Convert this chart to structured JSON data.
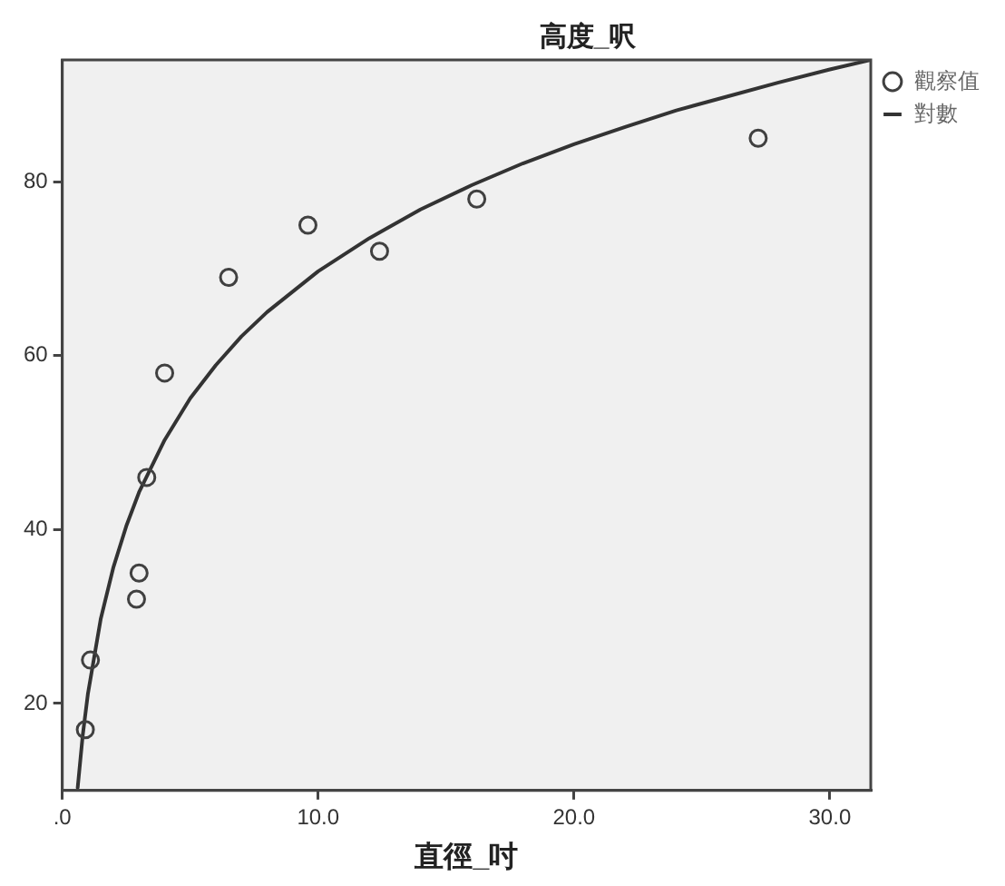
{
  "chart_data": {
    "type": "scatter",
    "title": "高度_呎",
    "xlabel": "直徑_吋",
    "series": [
      {
        "name": "觀察值",
        "color": "#404040",
        "marker": "circle",
        "x": [
          0.9,
          1.1,
          2.9,
          3.0,
          3.3,
          4.0,
          6.5,
          9.6,
          12.4,
          16.2,
          27.2
        ],
        "values": [
          17,
          25,
          32,
          35,
          46,
          58,
          69,
          75,
          72,
          78,
          85
        ]
      },
      {
        "name": "對數",
        "type": "line",
        "color": "#333333",
        "marker": "none",
        "x": [
          0.6,
          0.8,
          1,
          1.5,
          2,
          2.5,
          3,
          4,
          5,
          6,
          7,
          8,
          10,
          12,
          14,
          16,
          18,
          20,
          22,
          24,
          26,
          28,
          30,
          31.6
        ],
        "values": [
          10.3,
          16.4,
          21.1,
          29.7,
          35.7,
          40.4,
          44.3,
          50.3,
          55.1,
          58.9,
          62.2,
          65.0,
          69.7,
          73.5,
          76.8,
          79.6,
          82.1,
          84.3,
          86.3,
          88.2,
          89.8,
          91.4,
          92.9,
          94.0
        ]
      }
    ],
    "xlim": [
      0,
      31.6
    ],
    "ylim": [
      10,
      94
    ],
    "xticks": [
      {
        "value": 0,
        "label": ".0"
      },
      {
        "value": 10,
        "label": "10.0"
      },
      {
        "value": 20,
        "label": "20.0"
      },
      {
        "value": 30,
        "label": "30.0"
      }
    ],
    "yticks": [
      20,
      40,
      60,
      80
    ],
    "grid": false,
    "legend": "top right"
  }
}
